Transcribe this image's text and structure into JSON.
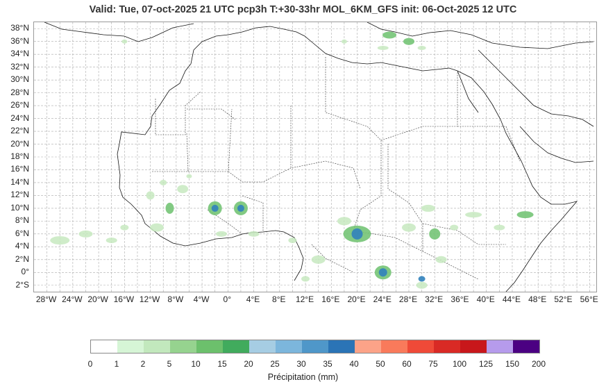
{
  "title": "Valid: Tue, 07-oct-2025   21 UTC   pcp3h   T:+30-33hr   MOL_6KM_GFS   init: 06-Oct-2025    12 UTC",
  "map": {
    "lon_range": [
      -30,
      57
    ],
    "lat_range": [
      -3,
      39
    ],
    "lat_labels": [
      "38°N",
      "36°N",
      "34°N",
      "32°N",
      "30°N",
      "28°N",
      "26°N",
      "24°N",
      "22°N",
      "20°N",
      "18°N",
      "16°N",
      "14°N",
      "12°N",
      "10°N",
      "8°N",
      "6°N",
      "4°N",
      "2°N",
      "0°",
      "2°S"
    ],
    "lon_labels": [
      "28°W",
      "24°W",
      "20°W",
      "16°W",
      "12°W",
      "8°W",
      "4°W",
      "0°",
      "4°E",
      "8°E",
      "12°E",
      "16°E",
      "20°E",
      "24°E",
      "28°E",
      "32°E",
      "36°E",
      "40°E",
      "44°E",
      "48°E",
      "52°E",
      "56°E"
    ],
    "precip_color_low": "#c7e9c0",
    "precip_color_mid": "#74c476",
    "precip_color_high": "#3182bd"
  },
  "colorbar": {
    "label": "Précipitation (mm)",
    "ticks": [
      "0",
      "1",
      "2",
      "5",
      "10",
      "15",
      "20",
      "25",
      "30",
      "35",
      "40",
      "50",
      "60",
      "75",
      "100",
      "125",
      "150",
      "200"
    ],
    "colors": [
      "#ffffff",
      "#d6f5d6",
      "#c2e8bd",
      "#96d38f",
      "#6cc06c",
      "#41ab5d",
      "#a6cde3",
      "#7cb6dc",
      "#4f97c9",
      "#2b74b6",
      "#fca388",
      "#f97a5b",
      "#ef4a38",
      "#d92a25",
      "#c8171b",
      "#b69bec",
      "#4b0082"
    ]
  }
}
